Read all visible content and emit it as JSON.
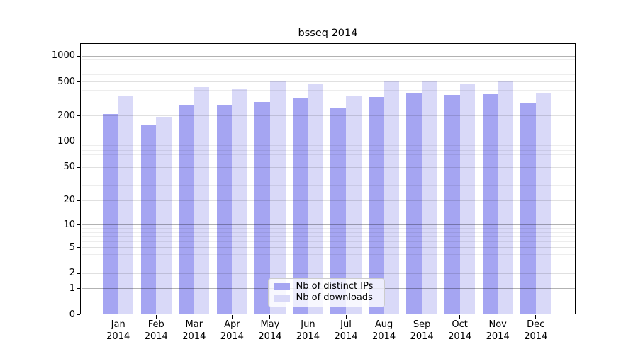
{
  "chart_data": {
    "type": "bar",
    "title": "bsseq 2014",
    "categories": [
      "Jan",
      "Feb",
      "Mar",
      "Apr",
      "May",
      "Jun",
      "Jul",
      "Aug",
      "Sep",
      "Oct",
      "Nov",
      "Dec"
    ],
    "x_tick_year": "2014",
    "series": [
      {
        "name": "Nb of distinct IPs",
        "color": "#a5a5f2",
        "values": [
          210,
          160,
          270,
          270,
          290,
          330,
          250,
          335,
          375,
          350,
          360,
          285
        ]
      },
      {
        "name": "Nb of downloads",
        "color": "#d9d9f8",
        "values": [
          345,
          195,
          435,
          420,
          515,
          465,
          345,
          515,
          510,
          475,
          515,
          375
        ]
      }
    ],
    "y_ticks": [
      1000,
      500,
      200,
      100,
      50,
      20,
      10,
      5,
      2,
      1,
      0
    ],
    "y_scale": "log10(1+x)",
    "y_axis_top_value": 1400,
    "grid": true,
    "legend_position": "bottom-center",
    "colors": {
      "background": "#ffffff",
      "axis": "#000000",
      "grid_decade": "#b3b3b3",
      "grid_labeled": "#e0e0e0",
      "grid_minor": "#ededed",
      "legend_border": "#cccccc"
    }
  }
}
